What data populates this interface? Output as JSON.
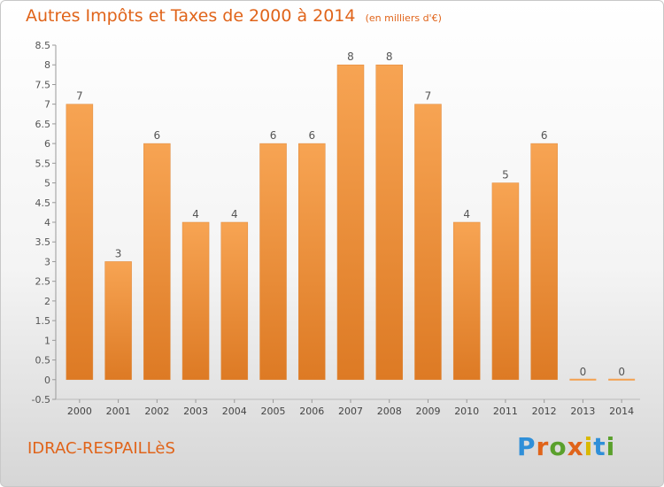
{
  "header": {
    "title": "Autres Impôts et Taxes de 2000 à 2014",
    "unit": "(en milliers d'€)"
  },
  "place": "IDRAC-RESPAILLèS",
  "logo": {
    "letters": [
      "P",
      "r",
      "o",
      "x",
      "i",
      "t",
      "i"
    ],
    "colors": [
      "#2f8fd8",
      "#e0641a",
      "#5aa02c",
      "#e0641a",
      "#d9b800",
      "#2f8fd8",
      "#5aa02c"
    ]
  },
  "colors": {
    "bar": "#f4a04e",
    "bar_dark": "#dd7a24",
    "accent": "#e0641a"
  },
  "chart_data": {
    "type": "bar",
    "title": "Autres Impôts et Taxes de 2000 à 2014",
    "subtitle": "(en milliers d'€)",
    "categories": [
      "2000",
      "2001",
      "2002",
      "2003",
      "2004",
      "2005",
      "2006",
      "2007",
      "2008",
      "2009",
      "2010",
      "2011",
      "2012",
      "2013",
      "2014"
    ],
    "values": [
      7,
      3,
      6,
      4,
      4,
      6,
      6,
      8,
      8,
      7,
      4,
      5,
      6,
      0,
      0
    ],
    "data_labels": [
      "7",
      "3",
      "6",
      "4",
      "4",
      "6",
      "6",
      "8",
      "8",
      "7",
      "4",
      "5",
      "6",
      "0",
      "0"
    ],
    "yticks": [
      "-0.5",
      "0",
      "0.5",
      "1",
      "1.5",
      "2",
      "2.5",
      "3",
      "3.5",
      "4",
      "4.5",
      "5",
      "5.5",
      "6",
      "6.5",
      "7",
      "7.5",
      "8",
      "8.5"
    ],
    "ylim": [
      -0.5,
      8.5
    ],
    "xlabel": "",
    "ylabel": "",
    "grid": false,
    "legend": "none"
  }
}
